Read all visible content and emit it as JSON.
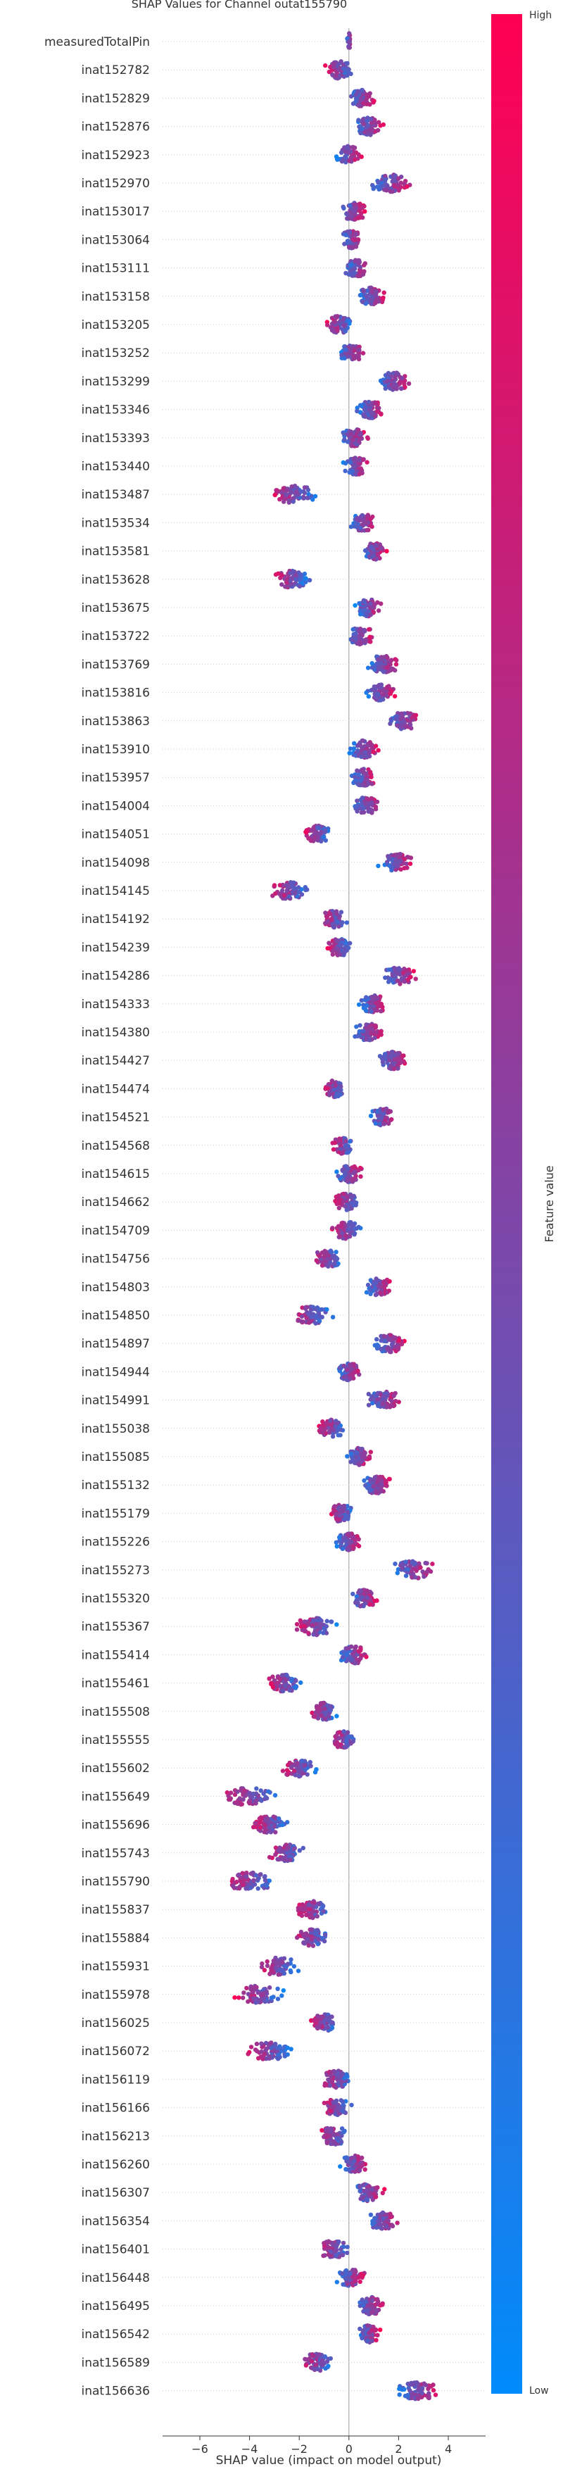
{
  "chart_data": {
    "type": "scatter",
    "title": "SHAP Values for Channel outat155790",
    "xlabel": "SHAP value (impact on model output)",
    "xlim": [
      -7.5,
      5.5
    ],
    "xticks": [
      -6,
      -4,
      -2,
      0,
      2,
      4
    ],
    "colorbar": {
      "label": "Feature value",
      "high_label": "High",
      "low_label": "Low",
      "high_color": "#ff0052",
      "low_color": "#008bfb"
    },
    "features": [
      {
        "name": "measuredTotalPin",
        "center": 0.0,
        "spread": 0.25
      },
      {
        "name": "inat152782",
        "center": -0.4,
        "spread": 1.5
      },
      {
        "name": "inat152829",
        "center": 0.5,
        "spread": 1.3
      },
      {
        "name": "inat152876",
        "center": 0.8,
        "spread": 1.5
      },
      {
        "name": "inat152923",
        "center": 0.0,
        "spread": 1.2
      },
      {
        "name": "inat152970",
        "center": 1.7,
        "spread": 2.2
      },
      {
        "name": "inat153017",
        "center": 0.2,
        "spread": 1.3
      },
      {
        "name": "inat153064",
        "center": 0.1,
        "spread": 1.1
      },
      {
        "name": "inat153111",
        "center": 0.3,
        "spread": 1.2
      },
      {
        "name": "inat153158",
        "center": 0.9,
        "spread": 1.4
      },
      {
        "name": "inat153205",
        "center": -0.4,
        "spread": 1.2
      },
      {
        "name": "inat153252",
        "center": 0.1,
        "spread": 1.3
      },
      {
        "name": "inat153299",
        "center": 1.8,
        "spread": 1.6
      },
      {
        "name": "inat153346",
        "center": 0.9,
        "spread": 1.4
      },
      {
        "name": "inat153393",
        "center": 0.2,
        "spread": 1.3
      },
      {
        "name": "inat153440",
        "center": 0.3,
        "spread": 1.2
      },
      {
        "name": "inat153487",
        "center": -2.2,
        "spread": 2.2
      },
      {
        "name": "inat153534",
        "center": 0.6,
        "spread": 1.3
      },
      {
        "name": "inat153581",
        "center": 1.0,
        "spread": 1.2
      },
      {
        "name": "inat153628",
        "center": -2.3,
        "spread": 1.6
      },
      {
        "name": "inat153675",
        "center": 0.8,
        "spread": 1.4
      },
      {
        "name": "inat153722",
        "center": 0.5,
        "spread": 1.3
      },
      {
        "name": "inat153769",
        "center": 1.4,
        "spread": 1.5
      },
      {
        "name": "inat153816",
        "center": 1.3,
        "spread": 1.5
      },
      {
        "name": "inat153863",
        "center": 2.2,
        "spread": 1.8
      },
      {
        "name": "inat153910",
        "center": 0.6,
        "spread": 1.5
      },
      {
        "name": "inat153957",
        "center": 0.6,
        "spread": 1.3
      },
      {
        "name": "inat154004",
        "center": 0.7,
        "spread": 1.3
      },
      {
        "name": "inat154051",
        "center": -1.3,
        "spread": 1.3
      },
      {
        "name": "inat154098",
        "center": 1.9,
        "spread": 1.5
      },
      {
        "name": "inat154145",
        "center": -2.4,
        "spread": 1.8
      },
      {
        "name": "inat154192",
        "center": -0.6,
        "spread": 1.2
      },
      {
        "name": "inat154239",
        "center": -0.4,
        "spread": 1.3
      },
      {
        "name": "inat154286",
        "center": 2.0,
        "spread": 1.6
      },
      {
        "name": "inat154333",
        "center": 1.0,
        "spread": 1.4
      },
      {
        "name": "inat154380",
        "center": 0.8,
        "spread": 1.6
      },
      {
        "name": "inat154427",
        "center": 1.8,
        "spread": 1.6
      },
      {
        "name": "inat154474",
        "center": -0.6,
        "spread": 1.0
      },
      {
        "name": "inat154521",
        "center": 1.4,
        "spread": 1.3
      },
      {
        "name": "inat154568",
        "center": -0.2,
        "spread": 1.2
      },
      {
        "name": "inat154615",
        "center": 0.0,
        "spread": 1.4
      },
      {
        "name": "inat154662",
        "center": -0.1,
        "spread": 1.2
      },
      {
        "name": "inat154709",
        "center": -0.1,
        "spread": 1.5
      },
      {
        "name": "inat154756",
        "center": -0.9,
        "spread": 1.6
      },
      {
        "name": "inat154803",
        "center": 1.2,
        "spread": 1.4
      },
      {
        "name": "inat154850",
        "center": -1.5,
        "spread": 1.9
      },
      {
        "name": "inat154897",
        "center": 1.6,
        "spread": 1.7
      },
      {
        "name": "inat154944",
        "center": 0.0,
        "spread": 1.3
      },
      {
        "name": "inat154991",
        "center": 1.4,
        "spread": 1.9
      },
      {
        "name": "inat155038",
        "center": -0.7,
        "spread": 1.4
      },
      {
        "name": "inat155085",
        "center": 0.4,
        "spread": 1.1
      },
      {
        "name": "inat155132",
        "center": 1.1,
        "spread": 1.6
      },
      {
        "name": "inat155179",
        "center": -0.3,
        "spread": 1.2
      },
      {
        "name": "inat155226",
        "center": 0.0,
        "spread": 1.3
      },
      {
        "name": "inat155273",
        "center": 2.6,
        "spread": 2.4
      },
      {
        "name": "inat155320",
        "center": 0.6,
        "spread": 1.3
      },
      {
        "name": "inat155367",
        "center": -1.4,
        "spread": 1.9
      },
      {
        "name": "inat155414",
        "center": 0.2,
        "spread": 1.4
      },
      {
        "name": "inat155461",
        "center": -2.6,
        "spread": 1.6
      },
      {
        "name": "inat155508",
        "center": -1.0,
        "spread": 1.2
      },
      {
        "name": "inat155555",
        "center": -0.2,
        "spread": 1.4
      },
      {
        "name": "inat155602",
        "center": -2.0,
        "spread": 1.8
      },
      {
        "name": "inat155649",
        "center": -4.0,
        "spread": 2.8
      },
      {
        "name": "inat155696",
        "center": -3.2,
        "spread": 2.0
      },
      {
        "name": "inat155743",
        "center": -2.5,
        "spread": 1.7
      },
      {
        "name": "inat155790",
        "center": -4.0,
        "spread": 2.8
      },
      {
        "name": "inat155837",
        "center": -1.4,
        "spread": 1.7
      },
      {
        "name": "inat155884",
        "center": -1.5,
        "spread": 1.7
      },
      {
        "name": "inat155931",
        "center": -2.9,
        "spread": 2.2
      },
      {
        "name": "inat155978",
        "center": -3.6,
        "spread": 2.4
      },
      {
        "name": "inat156025",
        "center": -1.0,
        "spread": 1.2
      },
      {
        "name": "inat156072",
        "center": -3.2,
        "spread": 2.5
      },
      {
        "name": "inat156119",
        "center": -0.5,
        "spread": 1.6
      },
      {
        "name": "inat156166",
        "center": -0.5,
        "spread": 1.4
      },
      {
        "name": "inat156213",
        "center": -0.6,
        "spread": 1.6
      },
      {
        "name": "inat156260",
        "center": 0.2,
        "spread": 1.3
      },
      {
        "name": "inat156307",
        "center": 0.8,
        "spread": 1.5
      },
      {
        "name": "inat156354",
        "center": 1.4,
        "spread": 1.7
      },
      {
        "name": "inat156401",
        "center": -0.6,
        "spread": 1.6
      },
      {
        "name": "inat156448",
        "center": 0.1,
        "spread": 1.4
      },
      {
        "name": "inat156495",
        "center": 0.9,
        "spread": 1.3
      },
      {
        "name": "inat156542",
        "center": 0.8,
        "spread": 1.0
      },
      {
        "name": "inat156589",
        "center": -1.3,
        "spread": 1.6
      },
      {
        "name": "inat156636",
        "center": 2.8,
        "spread": 2.1
      }
    ]
  }
}
